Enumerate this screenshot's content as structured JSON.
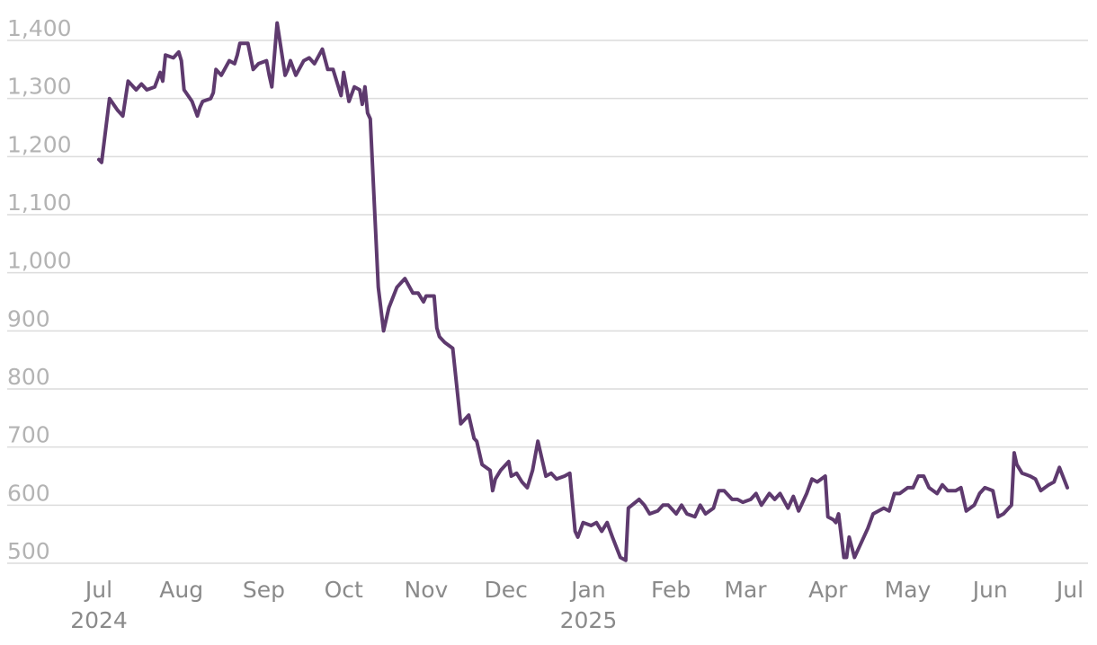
{
  "chart_data": {
    "type": "line",
    "title": "",
    "xlabel": "",
    "ylabel": "",
    "ylim": [
      480,
      1440
    ],
    "grid": "horizontal",
    "legend": "none",
    "line_color": "#5e3a6e",
    "y_ticks": [
      {
        "value": 1400,
        "label": "1,400"
      },
      {
        "value": 1300,
        "label": "1,300"
      },
      {
        "value": 1200,
        "label": "1,200"
      },
      {
        "value": 1100,
        "label": "1,100"
      },
      {
        "value": 1000,
        "label": "1,000"
      },
      {
        "value": 900,
        "label": "900"
      },
      {
        "value": 800,
        "label": "800"
      },
      {
        "value": 700,
        "label": "700"
      },
      {
        "value": 600,
        "label": "600"
      },
      {
        "value": 500,
        "label": "500"
      }
    ],
    "x_ticks": [
      {
        "date": "2024-07-01",
        "label": "Jul",
        "year": "2024"
      },
      {
        "date": "2024-08-01",
        "label": "Aug",
        "year": ""
      },
      {
        "date": "2024-09-01",
        "label": "Sep",
        "year": ""
      },
      {
        "date": "2024-10-01",
        "label": "Oct",
        "year": ""
      },
      {
        "date": "2024-11-01",
        "label": "Nov",
        "year": ""
      },
      {
        "date": "2024-12-01",
        "label": "Dec",
        "year": ""
      },
      {
        "date": "2025-01-01",
        "label": "Jan",
        "year": "2025"
      },
      {
        "date": "2025-02-01",
        "label": "Feb",
        "year": ""
      },
      {
        "date": "2025-03-01",
        "label": "Mar",
        "year": ""
      },
      {
        "date": "2025-04-01",
        "label": "Apr",
        "year": ""
      },
      {
        "date": "2025-05-01",
        "label": "May",
        "year": ""
      },
      {
        "date": "2025-06-01",
        "label": "Jun",
        "year": ""
      },
      {
        "date": "2025-07-01",
        "label": "Jul",
        "year": ""
      }
    ],
    "series": [
      {
        "x": [
          "2024-07-01",
          "2024-07-02",
          "2024-07-05",
          "2024-07-08",
          "2024-07-10",
          "2024-07-12",
          "2024-07-15",
          "2024-07-17",
          "2024-07-19",
          "2024-07-22",
          "2024-07-24",
          "2024-07-25",
          "2024-07-26",
          "2024-07-29",
          "2024-07-31",
          "2024-08-01",
          "2024-08-02",
          "2024-08-05",
          "2024-08-07",
          "2024-08-08",
          "2024-08-09",
          "2024-08-12",
          "2024-08-13",
          "2024-08-14",
          "2024-08-16",
          "2024-08-19",
          "2024-08-21",
          "2024-08-22",
          "2024-08-23",
          "2024-08-26",
          "2024-08-28",
          "2024-08-30",
          "2024-09-02",
          "2024-09-03",
          "2024-09-04",
          "2024-09-06",
          "2024-09-09",
          "2024-09-10",
          "2024-09-11",
          "2024-09-13",
          "2024-09-16",
          "2024-09-18",
          "2024-09-20",
          "2024-09-23",
          "2024-09-25",
          "2024-09-27",
          "2024-09-30",
          "2024-10-01",
          "2024-10-03",
          "2024-10-05",
          "2024-10-07",
          "2024-10-08",
          "2024-10-09",
          "2024-10-10",
          "2024-10-11",
          "2024-10-14",
          "2024-10-16",
          "2024-10-18",
          "2024-10-21",
          "2024-10-24",
          "2024-10-27",
          "2024-10-29",
          "2024-10-31",
          "2024-11-01",
          "2024-11-04",
          "2024-11-05",
          "2024-11-06",
          "2024-11-08",
          "2024-11-11",
          "2024-11-14",
          "2024-11-17",
          "2024-11-19",
          "2024-11-20",
          "2024-11-22",
          "2024-11-25",
          "2024-11-26",
          "2024-11-27",
          "2024-11-29",
          "2024-12-02",
          "2024-12-03",
          "2024-12-05",
          "2024-12-07",
          "2024-12-09",
          "2024-12-11",
          "2024-12-13",
          "2024-12-16",
          "2024-12-18",
          "2024-12-20",
          "2024-12-23",
          "2024-12-25",
          "2024-12-27",
          "2024-12-28",
          "2024-12-30",
          "2025-01-02",
          "2025-01-04",
          "2025-01-06",
          "2025-01-08",
          "2025-01-10",
          "2025-01-13",
          "2025-01-15",
          "2025-01-16",
          "2025-01-20",
          "2025-01-22",
          "2025-01-24",
          "2025-01-27",
          "2025-01-29",
          "2025-01-31",
          "2025-02-03",
          "2025-02-05",
          "2025-02-07",
          "2025-02-10",
          "2025-02-12",
          "2025-02-14",
          "2025-02-17",
          "2025-02-19",
          "2025-02-21",
          "2025-02-24",
          "2025-02-26",
          "2025-02-28",
          "2025-03-03",
          "2025-03-05",
          "2025-03-07",
          "2025-03-10",
          "2025-03-12",
          "2025-03-14",
          "2025-03-17",
          "2025-03-19",
          "2025-03-21",
          "2025-03-24",
          "2025-03-26",
          "2025-03-28",
          "2025-03-31",
          "2025-04-01",
          "2025-04-03",
          "2025-04-04",
          "2025-04-05",
          "2025-04-07",
          "2025-04-08",
          "2025-04-09",
          "2025-04-11",
          "2025-04-14",
          "2025-04-16",
          "2025-04-18",
          "2025-04-22",
          "2025-04-24",
          "2025-04-26",
          "2025-04-28",
          "2025-05-01",
          "2025-05-03",
          "2025-05-05",
          "2025-05-07",
          "2025-05-09",
          "2025-05-12",
          "2025-05-14",
          "2025-05-16",
          "2025-05-19",
          "2025-05-21",
          "2025-05-23",
          "2025-05-26",
          "2025-05-28",
          "2025-05-30",
          "2025-06-02",
          "2025-06-04",
          "2025-06-06",
          "2025-06-09",
          "2025-06-10",
          "2025-06-11",
          "2025-06-13",
          "2025-06-16",
          "2025-06-18",
          "2025-06-20",
          "2025-06-23",
          "2025-06-25",
          "2025-06-27",
          "2025-06-30"
        ],
        "values": [
          1195,
          1190,
          1300,
          1280,
          1270,
          1330,
          1315,
          1325,
          1315,
          1320,
          1345,
          1330,
          1375,
          1370,
          1380,
          1365,
          1315,
          1295,
          1270,
          1285,
          1295,
          1300,
          1310,
          1350,
          1340,
          1365,
          1360,
          1375,
          1395,
          1395,
          1350,
          1360,
          1365,
          1340,
          1320,
          1430,
          1340,
          1350,
          1365,
          1340,
          1365,
          1370,
          1360,
          1385,
          1350,
          1350,
          1305,
          1345,
          1295,
          1320,
          1315,
          1290,
          1320,
          1275,
          1265,
          975,
          900,
          940,
          975,
          990,
          965,
          965,
          950,
          960,
          960,
          905,
          890,
          880,
          870,
          740,
          755,
          715,
          710,
          670,
          660,
          625,
          645,
          660,
          675,
          650,
          655,
          640,
          630,
          660,
          710,
          650,
          655,
          645,
          650,
          655,
          555,
          545,
          570,
          565,
          570,
          555,
          570,
          545,
          510,
          505,
          595,
          610,
          600,
          585,
          590,
          600,
          600,
          585,
          600,
          585,
          580,
          600,
          585,
          595,
          625,
          625,
          610,
          610,
          605,
          610,
          620,
          600,
          620,
          610,
          620,
          595,
          615,
          590,
          620,
          645,
          640,
          650,
          580,
          575,
          570,
          585,
          510,
          510,
          545,
          510,
          540,
          560,
          585,
          595,
          590,
          620,
          620,
          630,
          630,
          650,
          650,
          630,
          620,
          635,
          625,
          625,
          630,
          590,
          600,
          620,
          630,
          625,
          580,
          585,
          600,
          690,
          670,
          655,
          650,
          645,
          625,
          635,
          640,
          665,
          630
        ]
      }
    ]
  }
}
